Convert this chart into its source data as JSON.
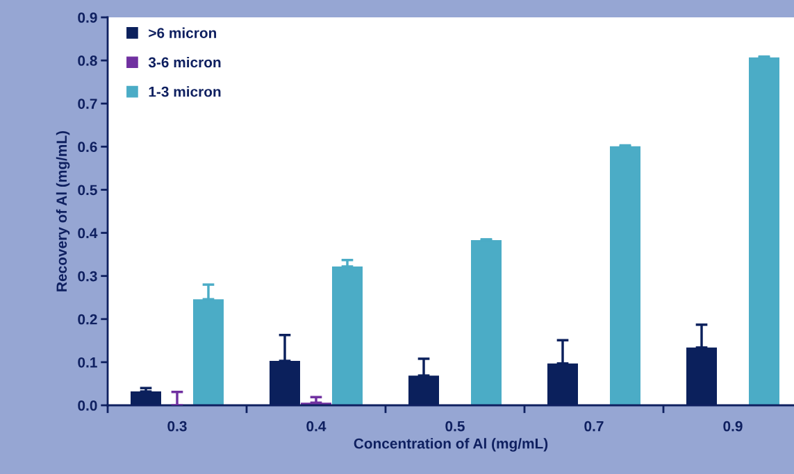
{
  "chart_data": {
    "type": "bar",
    "xlabel": "Concentration of Al (mg/mL)",
    "ylabel": "Recovery of Al (mg/mL)",
    "categories": [
      "0.3",
      "0.4",
      "0.5",
      "0.7",
      "0.9"
    ],
    "series": [
      {
        "name": ">6 micron",
        "color": "#0b205c",
        "values": [
          0.032,
          0.103,
          0.069,
          0.097,
          0.134
        ],
        "errors": [
          [
            0.032,
            0.04
          ],
          [
            0.103,
            0.163
          ],
          [
            0.069,
            0.108
          ],
          [
            0.097,
            0.151
          ],
          [
            0.134,
            0.187
          ]
        ]
      },
      {
        "name": "3-6 micron",
        "color": "#7030a0",
        "values": [
          0.0,
          0.006,
          0.0,
          0.0,
          0.0
        ],
        "errors": [
          [
            0.0,
            0.031
          ],
          [
            0.006,
            0.019
          ],
          null,
          null,
          null
        ]
      },
      {
        "name": "1-3 micron",
        "color": "#4bacc6",
        "values": [
          0.246,
          0.322,
          0.383,
          0.601,
          0.807
        ],
        "errors": [
          [
            0.246,
            0.28
          ],
          [
            0.322,
            0.337
          ],
          [
            0.383,
            0.385
          ],
          [
            0.601,
            0.603
          ],
          [
            0.807,
            0.809
          ]
        ]
      }
    ],
    "ylim": [
      0,
      0.9
    ],
    "yticks": [
      {
        "value": 0,
        "label": "0.0"
      },
      0.1,
      0.2,
      0.3,
      0.4,
      0.5,
      0.6,
      0.7,
      0.8,
      0.9
    ],
    "grid": false,
    "legend": "top left"
  }
}
